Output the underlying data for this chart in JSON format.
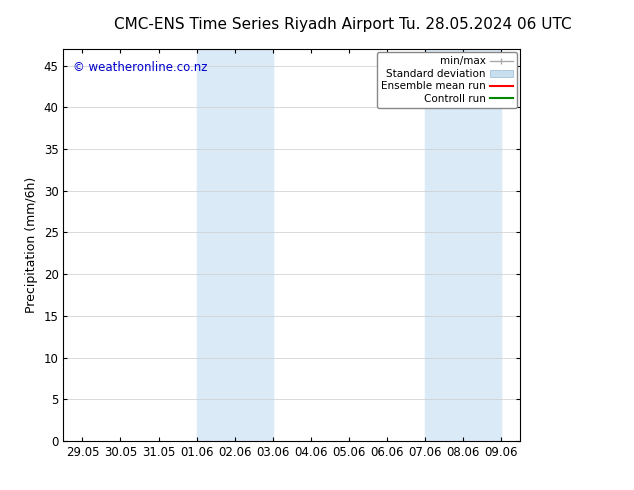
{
  "title_left": "CMC-ENS Time Series Riyadh Airport",
  "title_right": "Tu. 28.05.2024 06 UTC",
  "ylabel": "Precipitation (mm/6h)",
  "watermark": "© weatheronline.co.nz",
  "watermark_color": "#0000cc",
  "ylim": [
    0,
    47
  ],
  "yticks": [
    0,
    5,
    10,
    15,
    20,
    25,
    30,
    35,
    40,
    45
  ],
  "xtick_labels": [
    "29.05",
    "30.05",
    "31.05",
    "01.06",
    "02.06",
    "03.06",
    "04.06",
    "05.06",
    "06.06",
    "07.06",
    "08.06",
    "09.06"
  ],
  "shaded_regions": [
    {
      "xstart": 3,
      "xend": 5,
      "color": "#daeaf7"
    },
    {
      "xstart": 9,
      "xend": 11,
      "color": "#daeaf7"
    }
  ],
  "bg_color": "#ffffff",
  "plot_bg_color": "#ffffff",
  "legend_items": [
    {
      "label": "min/max",
      "color": "#aaaaaa",
      "lw": 1.0,
      "style": "errorbar"
    },
    {
      "label": "Standard deviation",
      "color": "#c8dff0",
      "lw": 6,
      "style": "band"
    },
    {
      "label": "Ensemble mean run",
      "color": "#ff0000",
      "lw": 1.5,
      "style": "line"
    },
    {
      "label": "Controll run",
      "color": "#008800",
      "lw": 1.5,
      "style": "line"
    }
  ],
  "title_fontsize": 11,
  "tick_fontsize": 8.5,
  "label_fontsize": 9,
  "watermark_fontsize": 8.5
}
